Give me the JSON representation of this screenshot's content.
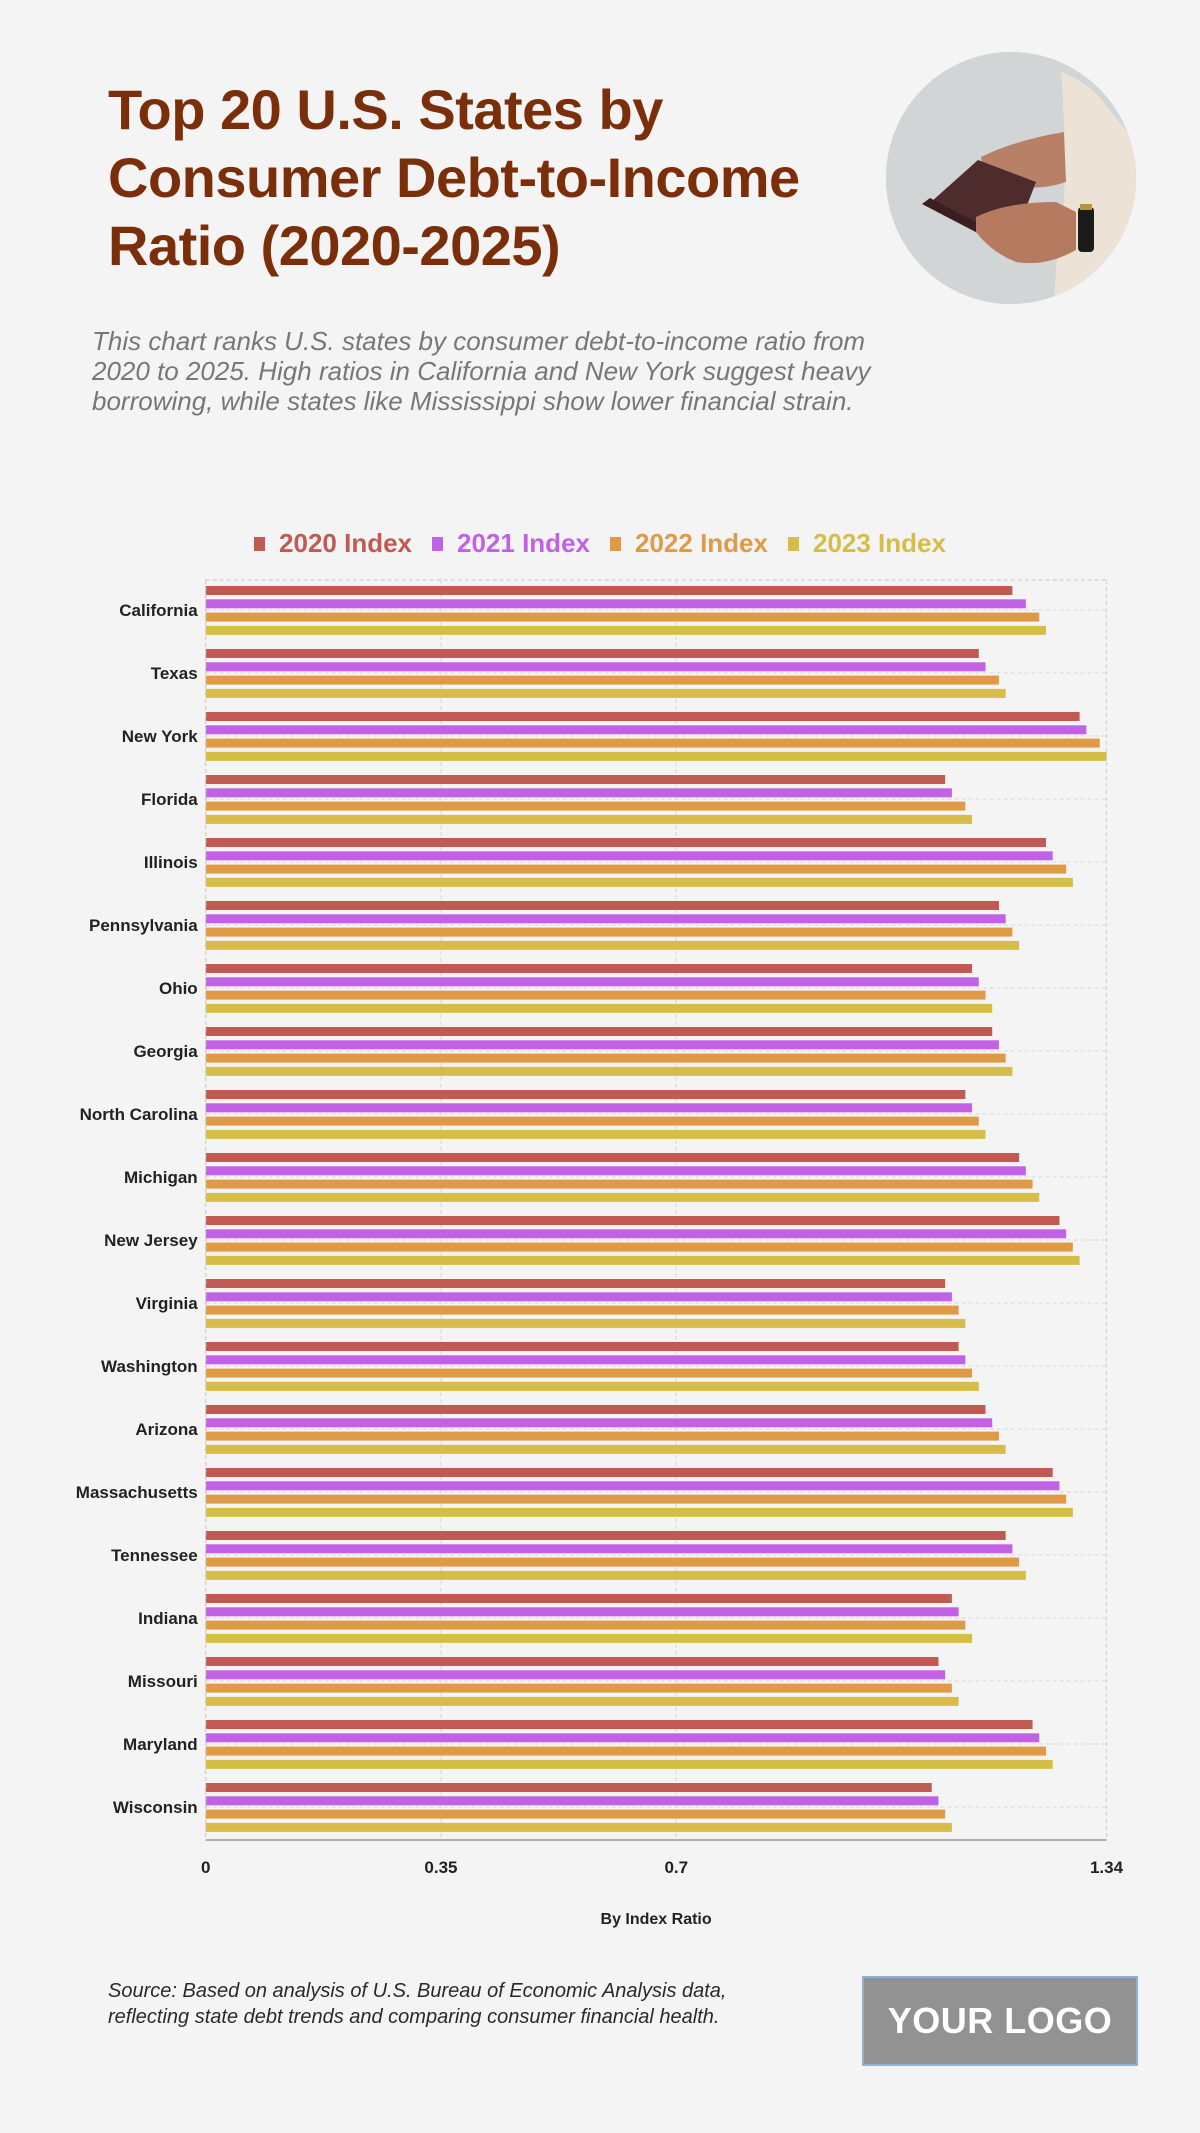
{
  "header": {
    "title": "Top 20 U.S. States by Consumer Debt-to-Income Ratio (2020-2025)",
    "subtitle": "This chart ranks U.S. states by consumer debt-to-income ratio from 2020 to 2025. High ratios in California and New York suggest heavy borrowing, while states like Mississippi show lower financial strain.",
    "image": "hands-opening-wallet-photo"
  },
  "footer": {
    "source": "Source: Based on analysis of U.S. Bureau of Economic Analysis data, reflecting state debt trends and comparing consumer financial health.",
    "logo": "YOUR LOGO"
  },
  "chart_data": {
    "type": "bar",
    "orientation": "horizontal",
    "title": "Top 20 U.S. States by Consumer Debt-to-Income Ratio (2020-2025)",
    "xlabel": "By Index Ratio",
    "ylabel": "",
    "xlim": [
      0,
      1.34
    ],
    "xticks": [
      0,
      0.35,
      0.7,
      1.34
    ],
    "xtick_labels": [
      "0",
      "0.35",
      "0.7",
      "1.34"
    ],
    "grid": true,
    "legend_position": "top",
    "categories": [
      "California",
      "Texas",
      "New York",
      "Florida",
      "Illinois",
      "Pennsylvania",
      "Ohio",
      "Georgia",
      "North Carolina",
      "Michigan",
      "New Jersey",
      "Virginia",
      "Washington",
      "Arizona",
      "Massachusetts",
      "Tennessee",
      "Indiana",
      "Missouri",
      "Maryland",
      "Wisconsin"
    ],
    "series": [
      {
        "name": "2020 Index",
        "color": "#c05a52",
        "values": [
          1.2,
          1.15,
          1.3,
          1.1,
          1.25,
          1.18,
          1.14,
          1.17,
          1.13,
          1.21,
          1.27,
          1.1,
          1.12,
          1.16,
          1.26,
          1.19,
          1.11,
          1.09,
          1.23,
          1.08
        ]
      },
      {
        "name": "2021 Index",
        "color": "#c061e6",
        "values": [
          1.22,
          1.16,
          1.31,
          1.11,
          1.26,
          1.19,
          1.15,
          1.18,
          1.14,
          1.22,
          1.28,
          1.11,
          1.13,
          1.17,
          1.27,
          1.2,
          1.12,
          1.1,
          1.24,
          1.09
        ]
      },
      {
        "name": "2022 Index",
        "color": "#e09a45",
        "values": [
          1.24,
          1.18,
          1.33,
          1.13,
          1.28,
          1.2,
          1.16,
          1.19,
          1.15,
          1.23,
          1.29,
          1.12,
          1.14,
          1.18,
          1.28,
          1.21,
          1.13,
          1.11,
          1.25,
          1.1
        ]
      },
      {
        "name": "2023 Index",
        "color": "#d6bd47",
        "values": [
          1.25,
          1.19,
          1.34,
          1.14,
          1.29,
          1.21,
          1.17,
          1.2,
          1.16,
          1.24,
          1.3,
          1.13,
          1.15,
          1.19,
          1.29,
          1.22,
          1.14,
          1.12,
          1.26,
          1.11
        ]
      }
    ]
  }
}
